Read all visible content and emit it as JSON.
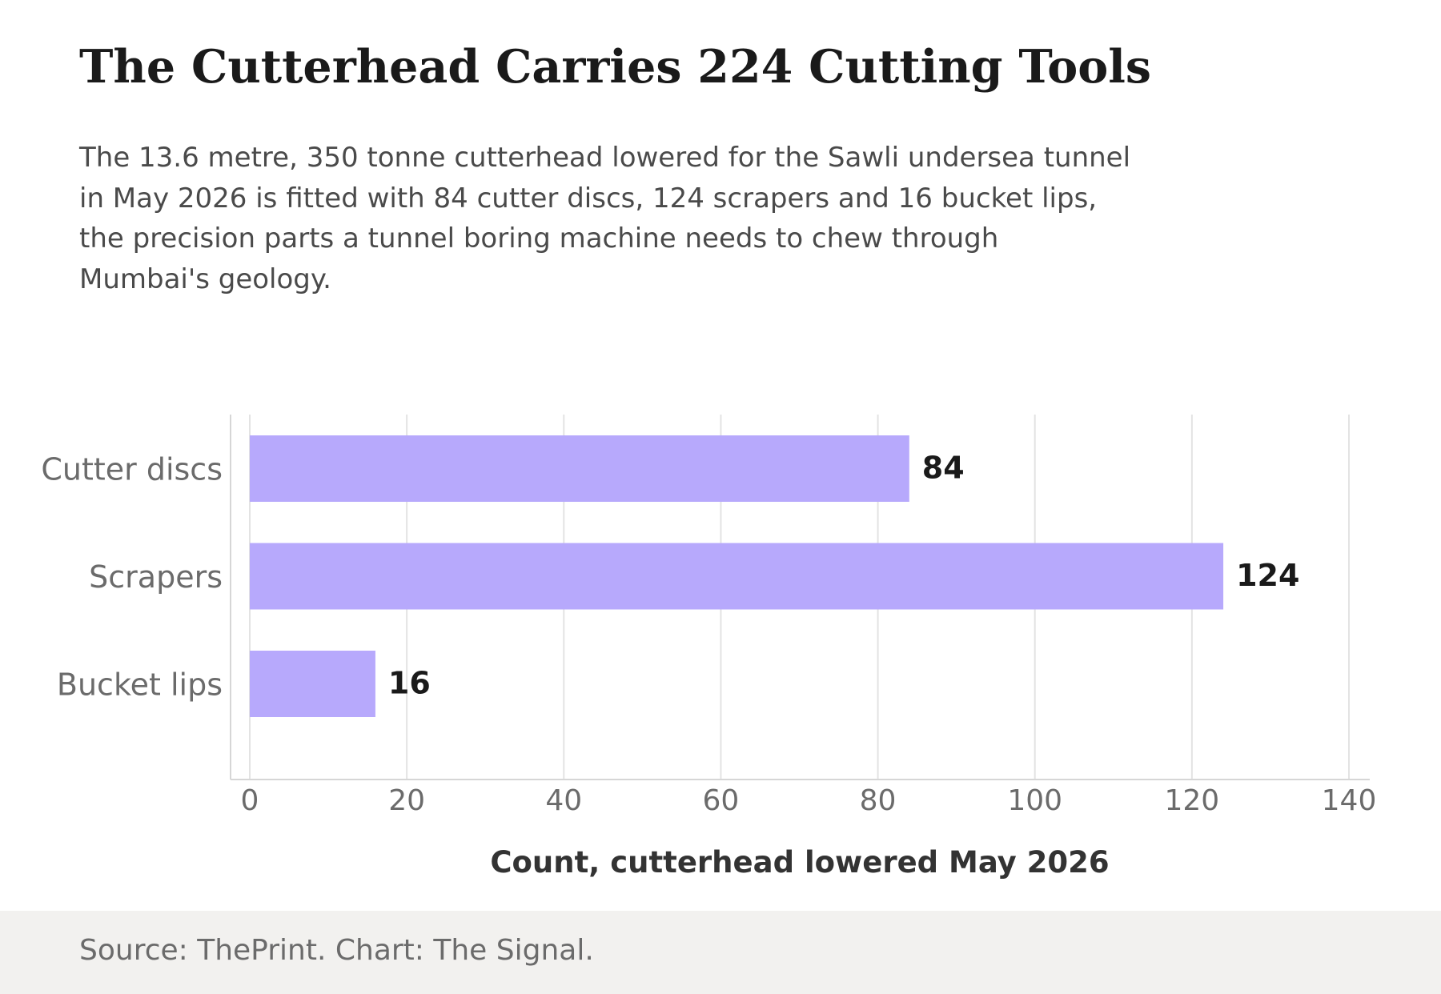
{
  "header": {
    "title": "The Cutterhead Carries 224 Cutting Tools",
    "subtitle": "The 13.6 metre, 350 tonne cutterhead lowered for the Sawli undersea tunnel in May 2026 is fitted with 84 cutter discs, 124 scrapers and 16 bucket lips, the precision parts a tunnel boring machine needs to chew through Mumbai's geology."
  },
  "footer": {
    "source": "Source: ThePrint. Chart: The Signal."
  },
  "chart_data": {
    "type": "bar",
    "orientation": "horizontal",
    "categories": [
      "Cutter discs",
      "Scrapers",
      "Bucket lips"
    ],
    "values": [
      84,
      124,
      16
    ],
    "xlabel": "Count, cutterhead lowered May 2026",
    "ylabel": "",
    "xlim": [
      0,
      140
    ],
    "xticks": [
      0,
      20,
      40,
      60,
      80,
      100,
      120,
      140
    ],
    "grid": "vertical",
    "bar_color": "#b7a9fc",
    "data_labels": true
  }
}
